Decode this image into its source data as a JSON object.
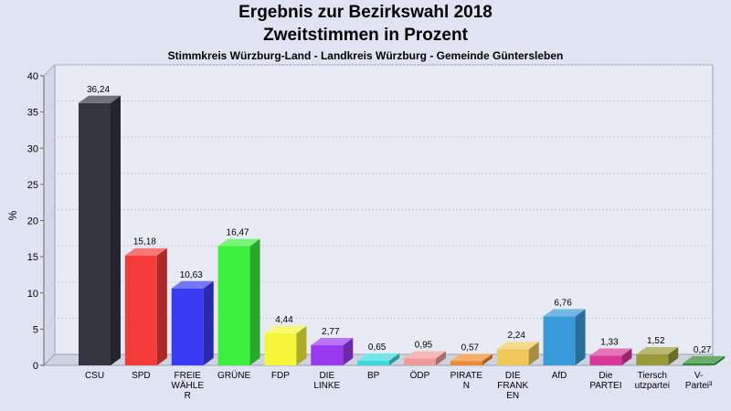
{
  "header": {
    "title": "Ergebnis zur Bezirkswahl 2018",
    "subtitle": "Zweitstimmen in Prozent",
    "location": "Stimmkreis Würzburg-Land - Landkreis Würzburg - Gemeinde Güntersleben"
  },
  "chart_data": {
    "type": "bar",
    "title": "Ergebnis zur Bezirkswahl 2018",
    "subtitle": "Zweitstimmen in Prozent",
    "ylabel": "%",
    "xlabel": "",
    "ylim": [
      0,
      40
    ],
    "yticks": [
      0,
      5,
      10,
      15,
      20,
      25,
      30,
      35,
      40
    ],
    "grid": true,
    "categories": [
      [
        "CSU"
      ],
      [
        "SPD"
      ],
      [
        "FREIE",
        "WÄHLE",
        "R"
      ],
      [
        "GRÜNE"
      ],
      [
        "FDP"
      ],
      [
        "DIE",
        "LINKE"
      ],
      [
        "BP"
      ],
      [
        "ÖDP"
      ],
      [
        "PIRATE",
        "N"
      ],
      [
        "DIE",
        "FRANK",
        "EN"
      ],
      [
        "AfD"
      ],
      [
        "Die",
        "PARTEI"
      ],
      [
        "Tiersch",
        "utzpartei"
      ],
      [
        "V-",
        "Partei³"
      ]
    ],
    "values": [
      36.24,
      15.18,
      10.63,
      16.47,
      4.44,
      2.77,
      0.65,
      0.95,
      0.57,
      2.24,
      6.76,
      1.33,
      1.52,
      0.27
    ],
    "value_labels": [
      "36,24",
      "15,18",
      "10,63",
      "16,47",
      "4,44",
      "2,77",
      "0,65",
      "0,95",
      "0,57",
      "2,24",
      "6,76",
      "1,33",
      "1,52",
      "0,27"
    ],
    "colors": [
      "#33363f",
      "#f53a3a",
      "#3a3af5",
      "#3ef03e",
      "#f5f53a",
      "#9a3af0",
      "#3ad9d9",
      "#f09a9a",
      "#f08a2e",
      "#f0c85a",
      "#3a9ad9",
      "#d93a9a",
      "#9a9a3a",
      "#2a8a2a"
    ]
  }
}
